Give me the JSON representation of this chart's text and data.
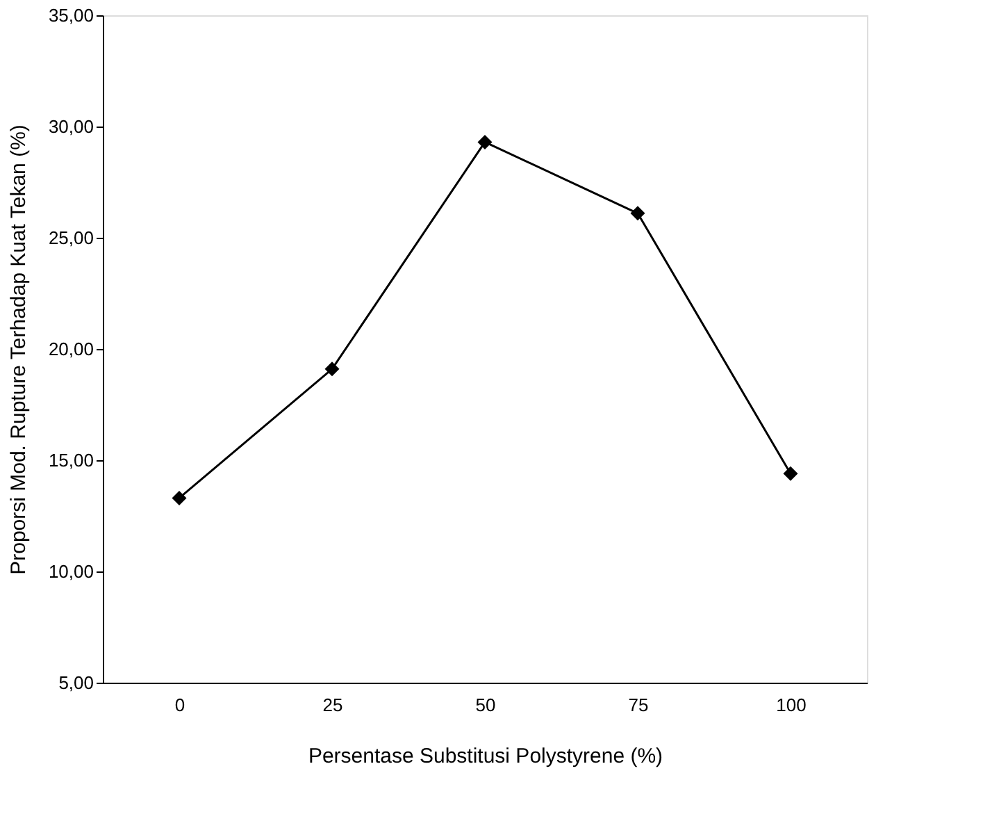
{
  "chart_data": {
    "type": "line",
    "xlabel": "Persentase Substitusi Polystyrene (%)",
    "ylabel": "Proporsi Mod. Rupture Terhadap Kuat Tekan (%)",
    "categories": [
      "0",
      "25",
      "50",
      "75",
      "100"
    ],
    "series": [
      {
        "color": "#000000",
        "values": [
          13.3,
          19.1,
          29.3,
          26.1,
          14.4
        ]
      }
    ],
    "ylim": [
      5,
      35
    ],
    "yticks": [
      {
        "value": 5,
        "label": "5,00"
      },
      {
        "value": 10,
        "label": "10,00"
      },
      {
        "value": 15,
        "label": "15,00"
      },
      {
        "value": 20,
        "label": "20,00"
      },
      {
        "value": 25,
        "label": "25,00"
      },
      {
        "value": 30,
        "label": "30,00"
      },
      {
        "value": 35,
        "label": "35,00"
      }
    ],
    "marker": "diamond",
    "line_style": "solid",
    "grid": false
  }
}
